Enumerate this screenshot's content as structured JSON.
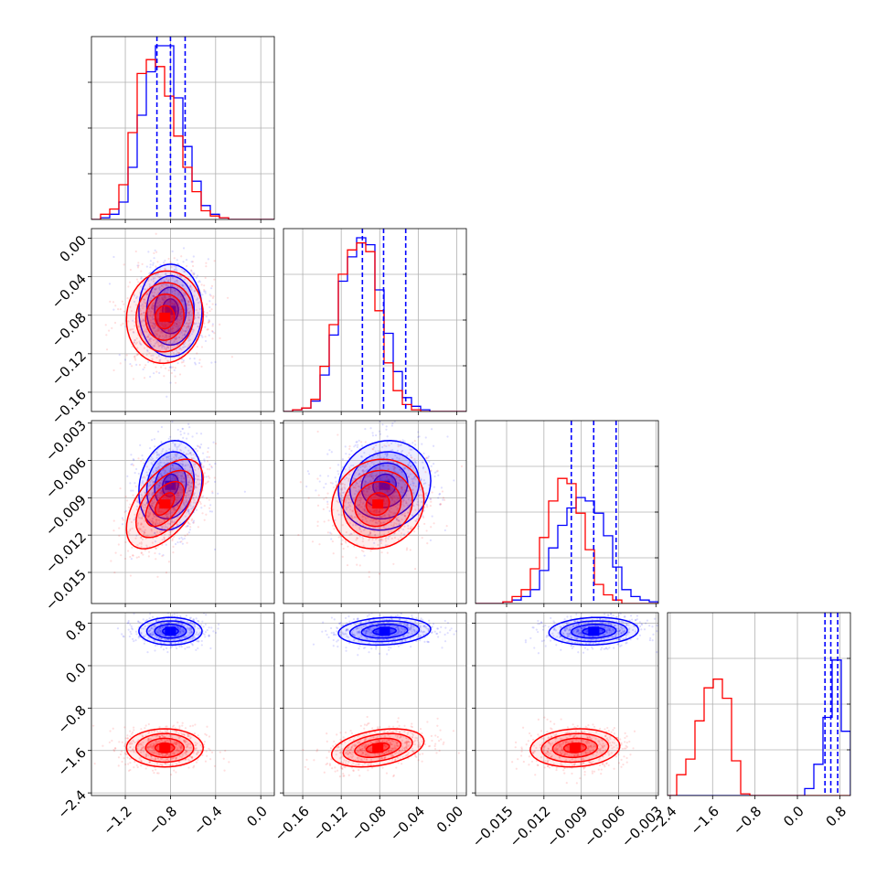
{
  "chart_data": {
    "type": "corner",
    "grid": true,
    "colors": {
      "series_a": "#0000ff",
      "series_b": "#ff0000",
      "grid": "#b0b0b0"
    },
    "series": [
      {
        "color": "#0000ff",
        "means": [
          -0.8,
          -0.075,
          -0.008,
          0.65
        ],
        "sds": [
          0.14,
          0.024,
          0.0018,
          0.13
        ],
        "quantiles": [
          [
            -0.92,
            -0.8,
            -0.67
          ],
          [
            -0.098,
            -0.076,
            -0.053
          ],
          [
            -0.0098,
            -0.008,
            -0.0062
          ],
          [
            0.52,
            0.63,
            0.76
          ]
        ],
        "histograms": [
          [
            0,
            0.01,
            0.03,
            0.1,
            0.3,
            0.6,
            0.85,
            1.0,
            1.0,
            0.7,
            0.42,
            0.22,
            0.08,
            0.03,
            0.01,
            0,
            0,
            0,
            0,
            0
          ],
          [
            0,
            0.01,
            0.02,
            0.06,
            0.21,
            0.44,
            0.75,
            0.89,
            1.0,
            0.96,
            0.7,
            0.45,
            0.23,
            0.08,
            0.03,
            0.01,
            0,
            0,
            0,
            0
          ],
          [
            0,
            0,
            0,
            0.01,
            0.02,
            0.04,
            0.08,
            0.19,
            0.32,
            0.45,
            0.55,
            0.61,
            0.59,
            0.52,
            0.39,
            0.21,
            0.08,
            0.04,
            0.02,
            0.01
          ],
          [
            0,
            0,
            0,
            0,
            0,
            0,
            0,
            0,
            0,
            0,
            0,
            0,
            0,
            0,
            0,
            0.04,
            0.18,
            0.45,
            0.78,
            0.37
          ]
        ]
      },
      {
        "color": "#ff0000",
        "means": [
          -0.85,
          -0.082,
          -0.0095,
          -1.55
        ],
        "sds": [
          0.17,
          0.024,
          0.0018,
          0.18
        ],
        "quantiles": [],
        "histograms": [
          [
            0,
            0.03,
            0.06,
            0.2,
            0.5,
            0.84,
            0.92,
            0.88,
            0.71,
            0.48,
            0.3,
            0.16,
            0.05,
            0.02,
            0.01,
            0,
            0,
            0,
            0,
            0
          ],
          [
            0,
            0.01,
            0.02,
            0.07,
            0.26,
            0.5,
            0.79,
            0.93,
            0.97,
            0.92,
            0.58,
            0.28,
            0.12,
            0.04,
            0.01,
            0,
            0,
            0,
            0,
            0
          ],
          [
            0,
            0,
            0,
            0.01,
            0.04,
            0.08,
            0.2,
            0.38,
            0.59,
            0.72,
            0.69,
            0.52,
            0.31,
            0.11,
            0.05,
            0.02,
            0,
            0,
            0,
            0
          ],
          [
            0,
            0.12,
            0.21,
            0.43,
            0.62,
            0.67,
            0.56,
            0.2,
            0.01,
            0,
            0,
            0,
            0,
            0,
            0,
            0,
            0,
            0,
            0,
            0
          ]
        ]
      }
    ],
    "correlations": [
      {
        "pair": [
          1,
          0
        ],
        "blue": 0.0,
        "red": 0.05
      },
      {
        "pair": [
          2,
          0
        ],
        "blue": 0.15,
        "red": 0.55
      },
      {
        "pair": [
          2,
          1
        ],
        "blue": 0.1,
        "red": 0.1
      },
      {
        "pair": [
          3,
          0
        ],
        "blue": 0.0,
        "red": 0.0
      },
      {
        "pair": [
          3,
          1
        ],
        "blue": 0.15,
        "red": 0.35
      },
      {
        "pair": [
          3,
          2
        ],
        "blue": 0.1,
        "red": 0.1
      }
    ],
    "variables": [
      {
        "range": [
          -1.5,
          0.12
        ],
        "ticks": [
          -1.2,
          -0.8,
          -0.4,
          0.0
        ],
        "tick_labels": [
          "−1.2",
          "−0.8",
          "−0.4",
          "0.0"
        ]
      },
      {
        "range": [
          -0.18,
          0.01
        ],
        "ticks": [
          -0.16,
          -0.12,
          -0.08,
          -0.04,
          0.0
        ],
        "tick_labels": [
          "−0.16",
          "−0.12",
          "−0.08",
          "−0.04",
          "0.00"
        ]
      },
      {
        "range": [
          -0.0175,
          -0.0028
        ],
        "ticks": [
          -0.015,
          -0.012,
          -0.009,
          -0.006,
          -0.003
        ],
        "tick_labels": [
          "−0.015",
          "−0.012",
          "−0.009",
          "−0.006",
          "−0.003"
        ]
      },
      {
        "range": [
          -2.45,
          1.0
        ],
        "ticks": [
          -2.4,
          -1.6,
          -0.8,
          0.0,
          0.8
        ],
        "tick_labels": [
          "−2.4",
          "−1.6",
          "−0.8",
          "0.0",
          "0.8"
        ]
      }
    ]
  }
}
